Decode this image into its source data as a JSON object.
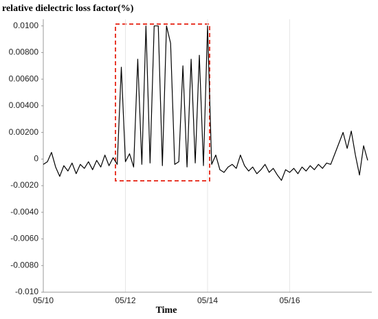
{
  "chart_data": {
    "type": "line",
    "title": "relative dielectric loss factor(%)",
    "x_label": "Time",
    "x": [
      10.0,
      10.1,
      10.2,
      10.3,
      10.4,
      10.5,
      10.6,
      10.7,
      10.8,
      10.9,
      11.0,
      11.1,
      11.2,
      11.3,
      11.4,
      11.5,
      11.6,
      11.7,
      11.8,
      11.9,
      12.0,
      12.1,
      12.2,
      12.3,
      12.4,
      12.5,
      12.6,
      12.7,
      12.8,
      12.9,
      13.0,
      13.1,
      13.2,
      13.3,
      13.4,
      13.5,
      13.6,
      13.7,
      13.8,
      13.9,
      14.0,
      14.1,
      14.2,
      14.3,
      14.4,
      14.5,
      14.6,
      14.7,
      14.8,
      14.9,
      15.0,
      15.1,
      15.2,
      15.3,
      15.4,
      15.5,
      15.6,
      15.7,
      15.8,
      15.9,
      16.0,
      16.1,
      16.2,
      16.3,
      16.4,
      16.5,
      16.6,
      16.7,
      16.8,
      16.9,
      17.0,
      17.1,
      17.2,
      17.3,
      17.4,
      17.5,
      17.6,
      17.7,
      17.8,
      17.9
    ],
    "series": [
      {
        "color": "#000000",
        "values": [
          -0.0004,
          -0.0002,
          0.0005,
          -0.0006,
          -0.0013,
          -0.0005,
          -0.0009,
          -0.0003,
          -0.0011,
          -0.0004,
          -0.0007,
          -0.0002,
          -0.0008,
          -0.0001,
          -0.0006,
          0.0003,
          -0.0005,
          0.0001,
          -0.0004,
          0.0069,
          -0.0002,
          0.0004,
          -0.0006,
          0.0075,
          -0.0004,
          0.01,
          -0.0003,
          0.01,
          0.01,
          -0.0005,
          0.01,
          0.0087,
          -0.0004,
          -0.0002,
          0.007,
          -0.0006,
          0.0075,
          -0.0003,
          0.0078,
          -0.0005,
          0.01,
          -0.0004,
          0.0003,
          -0.0008,
          -0.001,
          -0.0006,
          -0.0004,
          -0.0007,
          0.0003,
          -0.0005,
          -0.0009,
          -0.0006,
          -0.0011,
          -0.0008,
          -0.0004,
          -0.001,
          -0.0007,
          -0.0012,
          -0.0016,
          -0.0008,
          -0.001,
          -0.0007,
          -0.0011,
          -0.0006,
          -0.0009,
          -0.0005,
          -0.0008,
          -0.0004,
          -0.0007,
          -0.0003,
          -0.0004,
          0.0004,
          0.0012,
          0.002,
          0.0008,
          0.0021,
          0.0003,
          -0.0012,
          0.001,
          -0.0001
        ]
      }
    ],
    "xlim": [
      10,
      18
    ],
    "xticks": [
      {
        "value": 10,
        "label": "05/10"
      },
      {
        "value": 12,
        "label": "05/12"
      },
      {
        "value": 14,
        "label": "05/14"
      },
      {
        "value": 16,
        "label": "05/16"
      }
    ],
    "ylim": [
      -0.01,
      0.0105
    ],
    "yticks": [
      {
        "value": 0.01,
        "label": "0.0100"
      },
      {
        "value": 0.008,
        "label": "0.00800"
      },
      {
        "value": 0.006,
        "label": "0.00600"
      },
      {
        "value": 0.004,
        "label": "0.00400"
      },
      {
        "value": 0.002,
        "label": "0.00200"
      },
      0,
      {
        "value": -0.002,
        "label": "-0.0020"
      },
      {
        "value": -0.004,
        "label": "-0.0040"
      },
      {
        "value": -0.006,
        "label": "-0.0060"
      },
      {
        "value": -0.008,
        "label": "-0.0080"
      },
      {
        "value": -0.01,
        "label": "-0.010"
      }
    ],
    "grid": "x"
  }
}
